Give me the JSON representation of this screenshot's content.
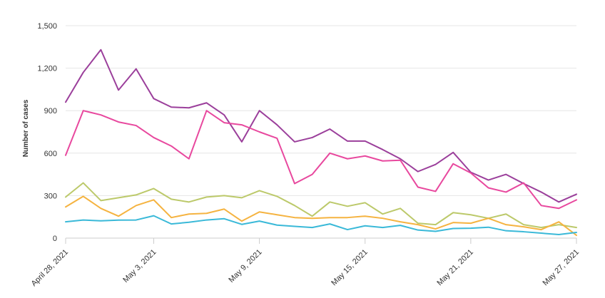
{
  "chart_data": {
    "type": "line",
    "title": "",
    "xlabel": "",
    "ylabel": "Number of cases",
    "ylim": [
      0,
      1500
    ],
    "grid": true,
    "legend": "none",
    "y_ticks": [
      0,
      300,
      600,
      900,
      1200,
      1500
    ],
    "y_tick_labels": [
      "0",
      "300",
      "600",
      "900",
      "1,200",
      "1,500"
    ],
    "x": [
      "2021-04-28",
      "2021-04-29",
      "2021-04-30",
      "2021-05-01",
      "2021-05-02",
      "2021-05-03",
      "2021-05-04",
      "2021-05-05",
      "2021-05-06",
      "2021-05-07",
      "2021-05-08",
      "2021-05-09",
      "2021-05-10",
      "2021-05-11",
      "2021-05-12",
      "2021-05-13",
      "2021-05-14",
      "2021-05-15",
      "2021-05-16",
      "2021-05-17",
      "2021-05-18",
      "2021-05-19",
      "2021-05-20",
      "2021-05-21",
      "2021-05-22",
      "2021-05-23",
      "2021-05-24",
      "2021-05-25",
      "2021-05-26",
      "2021-05-27"
    ],
    "x_ticks": [
      {
        "index": 0,
        "label": "April 28, 2021"
      },
      {
        "index": 5,
        "label": "May 3, 2021"
      },
      {
        "index": 11,
        "label": "May 9, 2021"
      },
      {
        "index": 17,
        "label": "May 15, 2021"
      },
      {
        "index": 23,
        "label": "May 21, 2021"
      },
      {
        "index": 29,
        "label": "May 27, 2021"
      }
    ],
    "series": [
      {
        "color": "#9b3f9b",
        "values": [
          960,
          1170,
          1330,
          1045,
          1195,
          985,
          925,
          920,
          955,
          870,
          680,
          900,
          800,
          680,
          710,
          770,
          685,
          685,
          625,
          560,
          470,
          520,
          605,
          465,
          410,
          450,
          385,
          325,
          255,
          310
        ]
      },
      {
        "color": "#e8489e",
        "values": [
          585,
          900,
          870,
          820,
          795,
          710,
          650,
          560,
          900,
          815,
          800,
          750,
          705,
          385,
          450,
          600,
          560,
          580,
          545,
          550,
          360,
          330,
          525,
          460,
          355,
          325,
          390,
          230,
          210,
          270
        ]
      },
      {
        "color": "#bcc96a",
        "values": [
          290,
          390,
          265,
          285,
          305,
          350,
          275,
          255,
          290,
          300,
          285,
          335,
          295,
          230,
          155,
          255,
          225,
          250,
          170,
          210,
          105,
          95,
          180,
          165,
          140,
          170,
          95,
          75,
          95,
          75
        ]
      },
      {
        "color": "#f5b340",
        "values": [
          220,
          295,
          210,
          155,
          230,
          270,
          145,
          170,
          175,
          205,
          120,
          185,
          165,
          145,
          140,
          145,
          145,
          155,
          140,
          115,
          95,
          65,
          110,
          105,
          140,
          95,
          80,
          60,
          115,
          20
        ]
      },
      {
        "color": "#3ab9d8",
        "values": [
          115,
          128,
          122,
          127,
          128,
          158,
          100,
          112,
          128,
          137,
          97,
          120,
          92,
          83,
          75,
          100,
          60,
          87,
          75,
          90,
          57,
          48,
          68,
          70,
          77,
          52,
          45,
          35,
          25,
          40
        ]
      }
    ]
  }
}
